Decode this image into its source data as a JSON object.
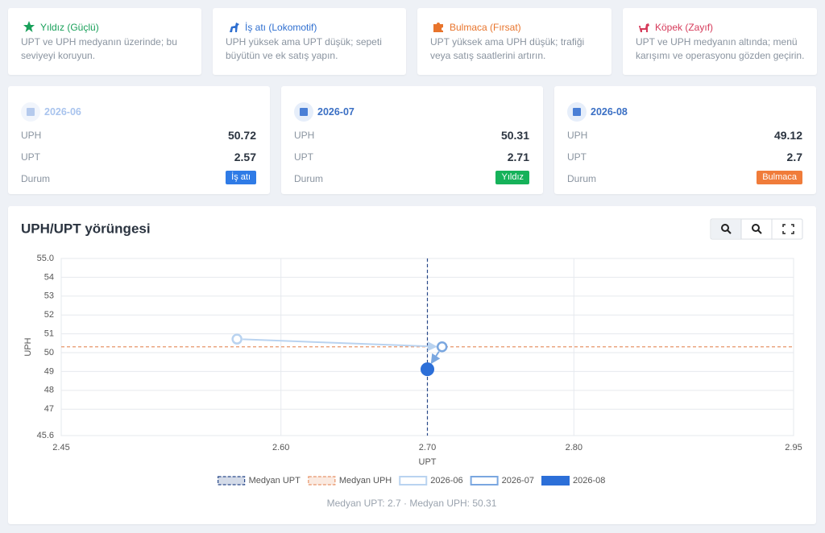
{
  "legend_cards": [
    {
      "title": "Yıldız (Güçlü)",
      "description": "UPT ve UPH medyanın üzerinde; bu seviyeyi koruyun.",
      "color": "#19a05a"
    },
    {
      "title": "İş atı (Lokomotif)",
      "description": "UPH yüksek ama UPT düşük; sepeti büyütün ve ek satış yapın.",
      "color": "#2f6fd0"
    },
    {
      "title": "Bulmaca (Fırsat)",
      "description": "UPT yüksek ama UPH düşük; trafiği veya satış saatlerini artırın.",
      "color": "#e8742c"
    },
    {
      "title": "Köpek (Zayıf)",
      "description": "UPT ve UPH medyanın altında; menü karışımı ve operasyonu gözden geçirin.",
      "color": "#d63a5a"
    }
  ],
  "period_cards": [
    {
      "period": "2026-06",
      "uph_label": "UPH",
      "uph": 50.72,
      "upt_label": "UPT",
      "upt": 2.57,
      "status_label": "Durum",
      "status": "İş atı",
      "status_color": "#2f7be6"
    },
    {
      "period": "2026-07",
      "uph_label": "UPH",
      "uph": 50.31,
      "upt_label": "UPT",
      "upt": 2.71,
      "status_label": "Durum",
      "status": "Yıldız",
      "status_color": "#16b25a"
    },
    {
      "period": "2026-08",
      "uph_label": "UPH",
      "uph": 49.12,
      "upt_label": "UPT",
      "upt": 2.7,
      "status_label": "Durum",
      "status": "Bulmaca",
      "status_color": "#f07c3a"
    }
  ],
  "chart_data": {
    "type": "scatter",
    "title": "UPH/UPT yörüngesi",
    "x_label": "UPT",
    "y_label": "UPH",
    "xlim": [
      2.45,
      2.95
    ],
    "ylim": [
      45.6,
      55.0
    ],
    "xticks": [
      2.45,
      {
        "value": 2.6,
        "label": "2.60"
      },
      {
        "value": 2.7,
        "label": "2.70"
      },
      {
        "value": 2.8,
        "label": "2.80"
      },
      2.95
    ],
    "yticks": [
      45.6,
      47,
      48,
      49,
      50,
      51,
      52,
      53,
      54,
      {
        "value": 55.0,
        "label": "55.0"
      }
    ],
    "grid": true,
    "reference_lines": [
      {
        "name": "Medyan UPT",
        "axis": "x",
        "value": 2.7,
        "color": "#2a4a8a"
      },
      {
        "name": "Medyan UPH",
        "axis": "y",
        "value": 50.31,
        "color": "#e8956a"
      }
    ],
    "series": [
      {
        "name": "2026-06",
        "color": "#b9d3f0",
        "filled": false,
        "x": [
          2.57
        ],
        "values": [
          50.72
        ]
      },
      {
        "name": "2026-07",
        "color": "#7aa7e0",
        "filled": false,
        "x": [
          2.71
        ],
        "values": [
          50.31
        ]
      },
      {
        "name": "2026-08",
        "color": "#2c6fd8",
        "filled": true,
        "x": [
          2.7
        ],
        "values": [
          49.12
        ]
      }
    ],
    "summary": "Medyan UPT: 2.7 · Medyan UPH: 50.31"
  }
}
